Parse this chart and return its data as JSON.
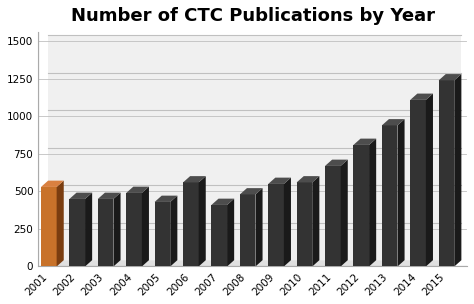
{
  "title": "Number of CTC Publications by Year",
  "years": [
    2001,
    2002,
    2003,
    2004,
    2005,
    2006,
    2007,
    2008,
    2009,
    2010,
    2011,
    2012,
    2013,
    2014,
    2015
  ],
  "values": [
    530,
    450,
    450,
    490,
    430,
    560,
    410,
    480,
    550,
    560,
    670,
    810,
    940,
    1110,
    1240
  ],
  "bar_color_front": "#333333",
  "bar_color_side": "#1a1a1a",
  "bar_color_top": "#4d4d4d",
  "highlight_front": "#c8722a",
  "highlight_side": "#7a3d10",
  "highlight_top": "#d98040",
  "highlight_index": 0,
  "ylim": [
    0,
    1500
  ],
  "yticks": [
    0,
    250,
    500,
    750,
    1000,
    1250,
    1500
  ],
  "background_color": "#ffffff",
  "title_fontsize": 13,
  "tick_fontsize": 7.5,
  "grid_color": "#c0c0c0",
  "wall_color": "#e8e8e8",
  "floor_color": "#d8d8d8"
}
